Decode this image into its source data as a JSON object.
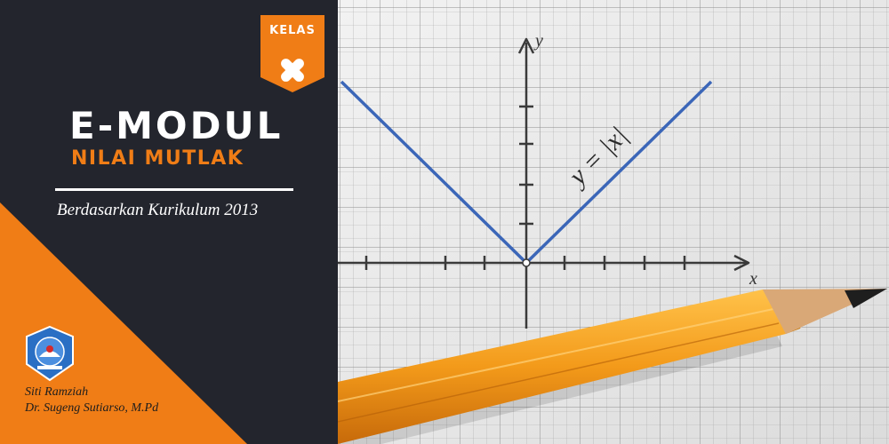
{
  "badge": {
    "label": "KELAS",
    "grade": "X"
  },
  "title": "E-MODUL",
  "subtitle": "NILAI MUTLAK",
  "curriculum": "Berdasarkan Kurikulum 2013",
  "authors": [
    "Siti Ramziah",
    "Dr. Sugeng Sutiarso, M.Pd"
  ],
  "graph": {
    "equation": "y = |x|",
    "x_axis_label": "x",
    "y_axis_label": "y"
  },
  "colors": {
    "dark": "#23252d",
    "accent": "#f07d16",
    "graph_line": "#3b66b8",
    "paper": "#e9e9e9",
    "pencil": "#f29a1d"
  },
  "icons": [
    "school-emblem-icon",
    "x-mark-icon",
    "pencil-illustration"
  ]
}
